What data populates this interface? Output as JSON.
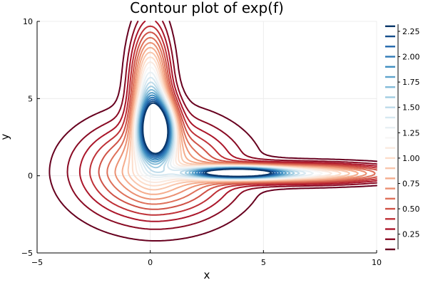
{
  "chart_data": {
    "type": "contour",
    "title": "Contour plot of exp(f)",
    "xlabel": "x",
    "ylabel": "y",
    "xlim": [
      -5,
      10
    ],
    "ylim": [
      -5,
      10
    ],
    "xticks": [
      -5,
      0,
      5,
      10
    ],
    "yticks": [
      -5,
      0,
      5,
      10
    ],
    "grid": true,
    "legend": "none",
    "colormap": "RdBu (red = low, blue = high)",
    "levels": [
      0.1,
      0.2,
      0.3,
      0.4,
      0.5,
      0.6,
      0.7,
      0.8,
      0.9,
      1.0,
      1.1,
      1.2,
      1.3,
      1.4,
      1.5,
      1.6,
      1.7,
      1.8,
      1.9,
      2.0,
      2.1,
      2.2,
      2.3
    ],
    "colorbar": {
      "ticks": [
        "0.25",
        "0.50",
        "0.75",
        "1.00",
        "1.25",
        "1.50",
        "1.75",
        "2.00",
        "2.25"
      ],
      "tick_values": [
        0.25,
        0.5,
        0.75,
        1.0,
        1.25,
        1.5,
        1.75,
        2.0,
        2.25
      ],
      "range": [
        0.1,
        2.32
      ]
    },
    "features": {
      "maximum_1": {
        "x": 0.3,
        "y": 3.0
      },
      "maximum_2": {
        "x": 3.8,
        "y": 0.2
      },
      "valley_arms": [
        "toward +y along x≈0",
        "toward +x along y≈0"
      ]
    }
  }
}
